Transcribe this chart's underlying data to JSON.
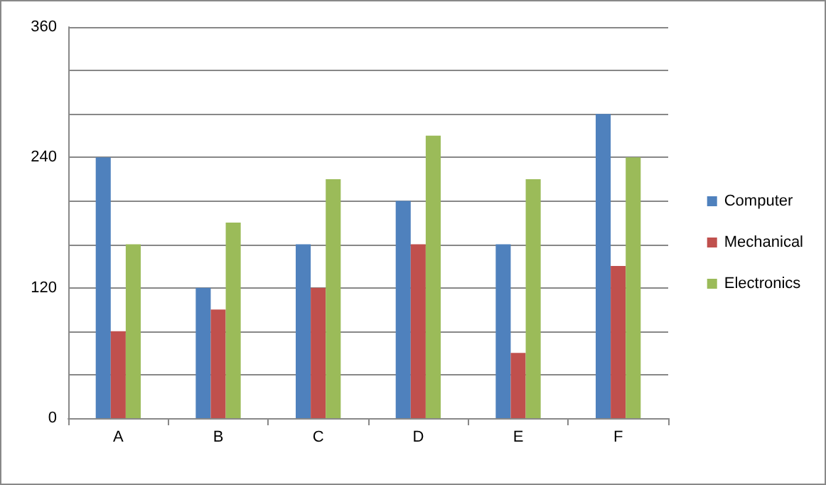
{
  "chart_data": {
    "type": "bar",
    "categories": [
      "A",
      "B",
      "C",
      "D",
      "E",
      "F"
    ],
    "series": [
      {
        "name": "Computer",
        "color": "#4f81bd",
        "values": [
          240,
          120,
          160,
          200,
          160,
          280
        ]
      },
      {
        "name": "Mechanical",
        "color": "#c0504d",
        "values": [
          80,
          100,
          120,
          160,
          60,
          140
        ]
      },
      {
        "name": "Electronics",
        "color": "#9bbb59",
        "values": [
          160,
          180,
          220,
          260,
          220,
          240
        ]
      }
    ],
    "ylim": [
      0,
      360
    ],
    "yticks": [
      0,
      {
        "value": 40,
        "label": null
      },
      {
        "value": 80,
        "label": null
      },
      120,
      {
        "value": 160,
        "label": null
      },
      {
        "value": 200,
        "label": null
      },
      240,
      {
        "value": 280,
        "label": null
      },
      {
        "value": 320,
        "label": null
      },
      360
    ],
    "grid": "y",
    "legend": "right"
  }
}
